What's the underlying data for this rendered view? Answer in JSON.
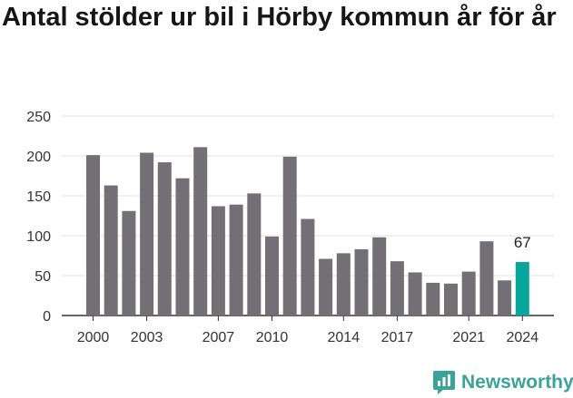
{
  "chart_data": {
    "type": "bar",
    "title": "Antal stölder ur bil i Hörby kommun år för år",
    "xlabel": "",
    "ylabel": "",
    "categories": [
      2000,
      2001,
      2002,
      2003,
      2004,
      2005,
      2006,
      2007,
      2008,
      2009,
      2010,
      2011,
      2012,
      2013,
      2014,
      2015,
      2016,
      2017,
      2018,
      2019,
      2020,
      2021,
      2022,
      2023,
      2024
    ],
    "values": [
      201,
      163,
      131,
      204,
      192,
      172,
      211,
      137,
      139,
      153,
      99,
      199,
      121,
      71,
      78,
      83,
      98,
      68,
      54,
      41,
      40,
      55,
      93,
      44,
      67
    ],
    "x_tick_labels": [
      "2000",
      "2003",
      "2007",
      "2010",
      "2014",
      "2017",
      "2021",
      "2024"
    ],
    "y_ticks": [
      0,
      50,
      100,
      150,
      200,
      250
    ],
    "ylim": [
      0,
      250
    ],
    "grid": true,
    "highlight": {
      "category": 2024,
      "label": "67"
    },
    "colors": {
      "bar": "#727075",
      "highlight": "#06a69b",
      "grid": "#e0e0e0",
      "axis": "#333333"
    }
  },
  "brand": {
    "name": "Newsworthy",
    "icon": "newsworthy-logo-icon",
    "color": "#3aa49a"
  }
}
